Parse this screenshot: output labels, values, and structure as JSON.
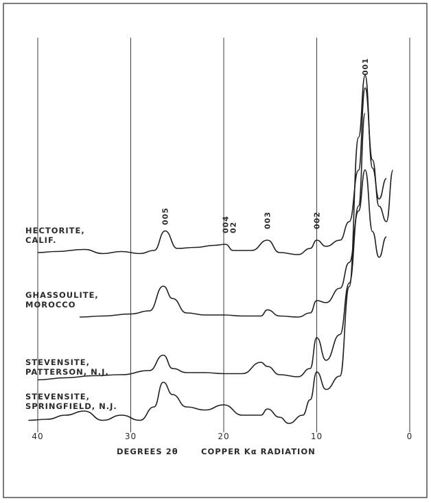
{
  "chart_data": {
    "type": "line",
    "x_axis": {
      "label_parts": [
        "DEGREES 2θ",
        "COPPER Kα RADIATION"
      ],
      "ticks": [
        40,
        30,
        20,
        10,
        0
      ],
      "range": [
        40,
        0
      ]
    },
    "peak_labels": [
      {
        "text": "001",
        "x": 4.8
      },
      {
        "text": "005",
        "x": 26.3
      },
      {
        "text": "004 02",
        "x": 19.8
      },
      {
        "text": "003",
        "x": 15.3
      },
      {
        "text": "002",
        "x": 10.0
      }
    ],
    "series": [
      {
        "name": "HECTORITE, CALIF.",
        "label_lines": [
          "HECTORITE,",
          "CALIF."
        ],
        "x": [
          40,
          38,
          35,
          33,
          31,
          29,
          27.5,
          26.3,
          25,
          23,
          21,
          19.8,
          19,
          17,
          15.3,
          14,
          12,
          10.7,
          10,
          9,
          7.5,
          6.5,
          5.5,
          4.8,
          4,
          3.3,
          2.5,
          1.8
        ],
        "y": [
          0.1,
          0.11,
          0.13,
          0.09,
          0.11,
          0.09,
          0.12,
          0.31,
          0.14,
          0.15,
          0.17,
          0.18,
          0.12,
          0.12,
          0.22,
          0.1,
          0.08,
          0.14,
          0.22,
          0.16,
          0.22,
          0.4,
          0.9,
          1.7,
          1.0,
          0.55,
          0.4,
          0.9
        ]
      },
      {
        "name": "GHASSOULITE, MOROCCO",
        "label_lines": [
          "GHASSOULITE,",
          "MOROCCO"
        ],
        "x": [
          35.5,
          33,
          30,
          28,
          26.5,
          25.5,
          24,
          22,
          20,
          18,
          16,
          15.3,
          14,
          12,
          10.7,
          10,
          9,
          7.5,
          6.5,
          5.5,
          4.8,
          4,
          3.3,
          2.5
        ],
        "y": [
          0.02,
          0.03,
          0.05,
          0.08,
          0.32,
          0.2,
          0.06,
          0.04,
          0.04,
          0.03,
          0.03,
          0.09,
          0.03,
          0.02,
          0.06,
          0.18,
          0.16,
          0.3,
          0.55,
          1.05,
          1.45,
          0.85,
          0.6,
          0.8
        ]
      },
      {
        "name": "STEVENSITE, PATTERSON, N.J.",
        "label_lines": [
          "STEVENSITE,",
          "PATTERSON, N.J."
        ],
        "x": [
          40,
          37,
          34,
          31,
          28,
          26.5,
          25.5,
          24,
          22,
          20,
          18,
          16,
          15.3,
          14,
          12,
          10.7,
          10,
          9,
          7.5,
          6.5,
          5.5,
          4.8
        ],
        "y": [
          0.01,
          0.03,
          0.05,
          0.06,
          0.1,
          0.25,
          0.12,
          0.08,
          0.08,
          0.07,
          0.07,
          0.18,
          0.14,
          0.06,
          0.04,
          0.12,
          0.42,
          0.2,
          0.45,
          0.95,
          1.7,
          2.6
        ]
      },
      {
        "name": "STEVENSITE, SPRINGFIELD, N.J.",
        "label_lines": [
          "STEVENSITE,",
          "SPRINGFIELD, N.J."
        ],
        "x": [
          41,
          39,
          37,
          35,
          33,
          31,
          29,
          27.5,
          26.5,
          25.5,
          24,
          22,
          20,
          18,
          16,
          15.3,
          14,
          13,
          11.5,
          10.7,
          10,
          9,
          7.5,
          6.5,
          5.5,
          4.8,
          4,
          3.3,
          2.5
        ],
        "y": [
          0.05,
          0.06,
          0.1,
          0.14,
          0.05,
          0.1,
          0.05,
          0.18,
          0.42,
          0.3,
          0.18,
          0.15,
          0.2,
          0.1,
          0.1,
          0.16,
          0.08,
          0.02,
          0.1,
          0.25,
          0.52,
          0.35,
          0.48,
          1.35,
          2.8,
          3.4,
          2.5,
          2.2,
          2.4
        ]
      }
    ]
  }
}
